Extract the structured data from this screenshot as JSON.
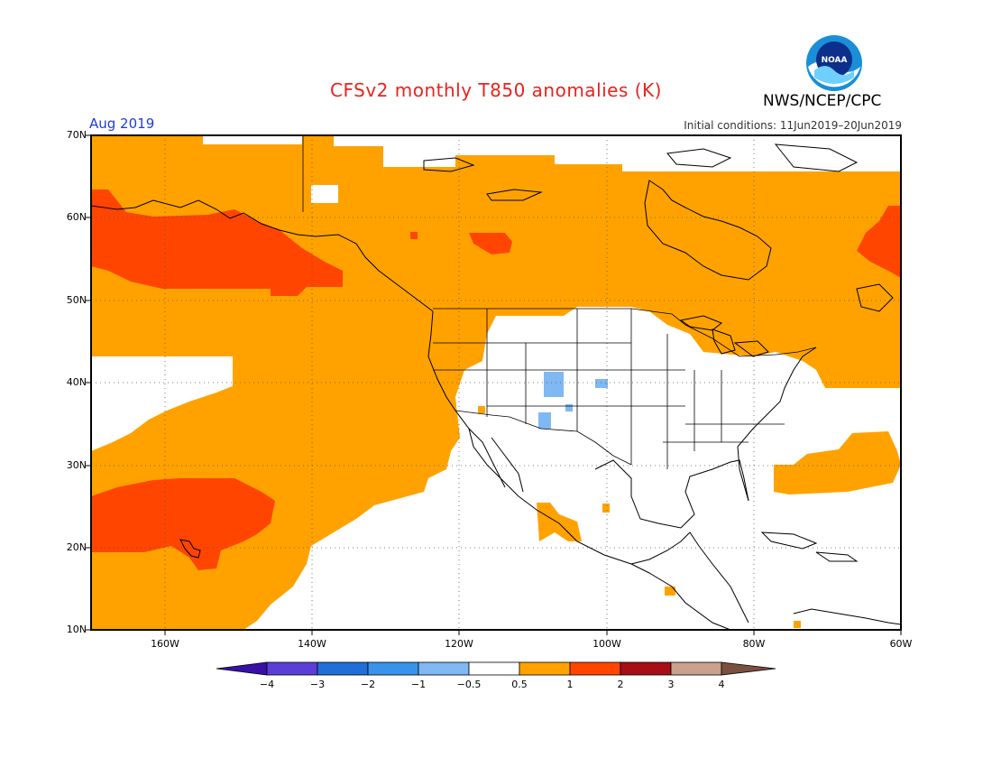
{
  "title": "CFSv2 monthly T850 anomalies (K)",
  "agency": "NWS/NCEP/CPC",
  "logo_text": "NOAA",
  "month": "Aug 2019",
  "initial_conditions": "Initial conditions: 11Jun2019–20Jun2019",
  "lat_labels": [
    "70N",
    "60N",
    "50N",
    "40N",
    "30N",
    "20N",
    "10N"
  ],
  "lon_labels": [
    "160W",
    "140W",
    "120W",
    "100W",
    "80W",
    "60W"
  ],
  "colorbar": {
    "labels": [
      "−4",
      "−3",
      "−2",
      "−1",
      "−0.5",
      "0.5",
      "1",
      "2",
      "3",
      "4"
    ],
    "colors": [
      "#3a0fa8",
      "#5a3ed6",
      "#1f6fd6",
      "#3a93ea",
      "#7fb8f2",
      "#ffffff",
      "#ffa200",
      "#ff4500",
      "#a50f15",
      "#c9a18e",
      "#7a5040"
    ]
  },
  "map": {
    "lon_range": [
      -170,
      -60
    ],
    "lat_range": [
      10,
      70
    ],
    "colors": {
      "warm": "#ffa200",
      "hot": "#ff4500",
      "cool": "#7fb8f2",
      "land_line": "#000000"
    }
  }
}
